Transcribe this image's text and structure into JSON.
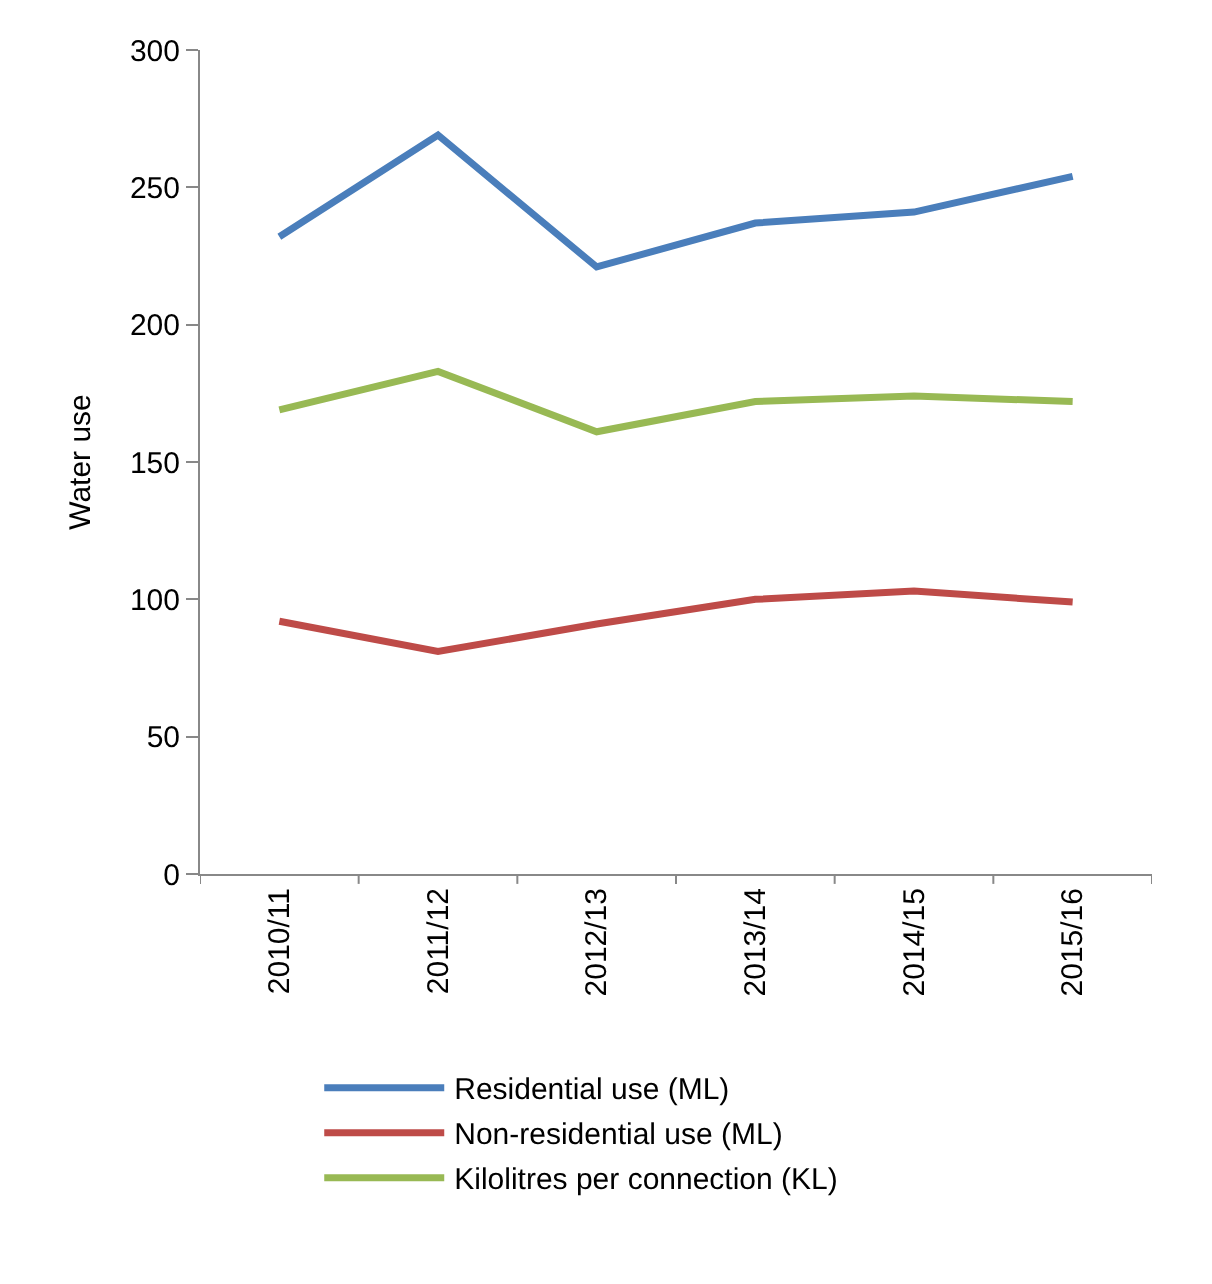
{
  "chart_data": {
    "type": "line",
    "ylabel": "Water use",
    "categories": [
      "2010/11",
      "2011/12",
      "2012/13",
      "2013/14",
      "2014/15",
      "2015/16"
    ],
    "series": [
      {
        "name": "Residential use (ML)",
        "color": "#4a7ebb",
        "values": [
          232,
          269,
          221,
          237,
          241,
          254
        ]
      },
      {
        "name": "Non-residential use (ML)",
        "color": "#be4b48",
        "values": [
          92,
          81,
          91,
          100,
          103,
          99
        ]
      },
      {
        "name": "Kilolitres per connection (KL)",
        "color": "#98b954",
        "values": [
          169,
          183,
          161,
          172,
          174,
          172
        ]
      }
    ],
    "ylim": [
      0,
      300
    ],
    "yticks": [
      0,
      50,
      100,
      150,
      200,
      250,
      300
    ],
    "legend": "bottom",
    "marker": "none",
    "line_style": "solid"
  }
}
